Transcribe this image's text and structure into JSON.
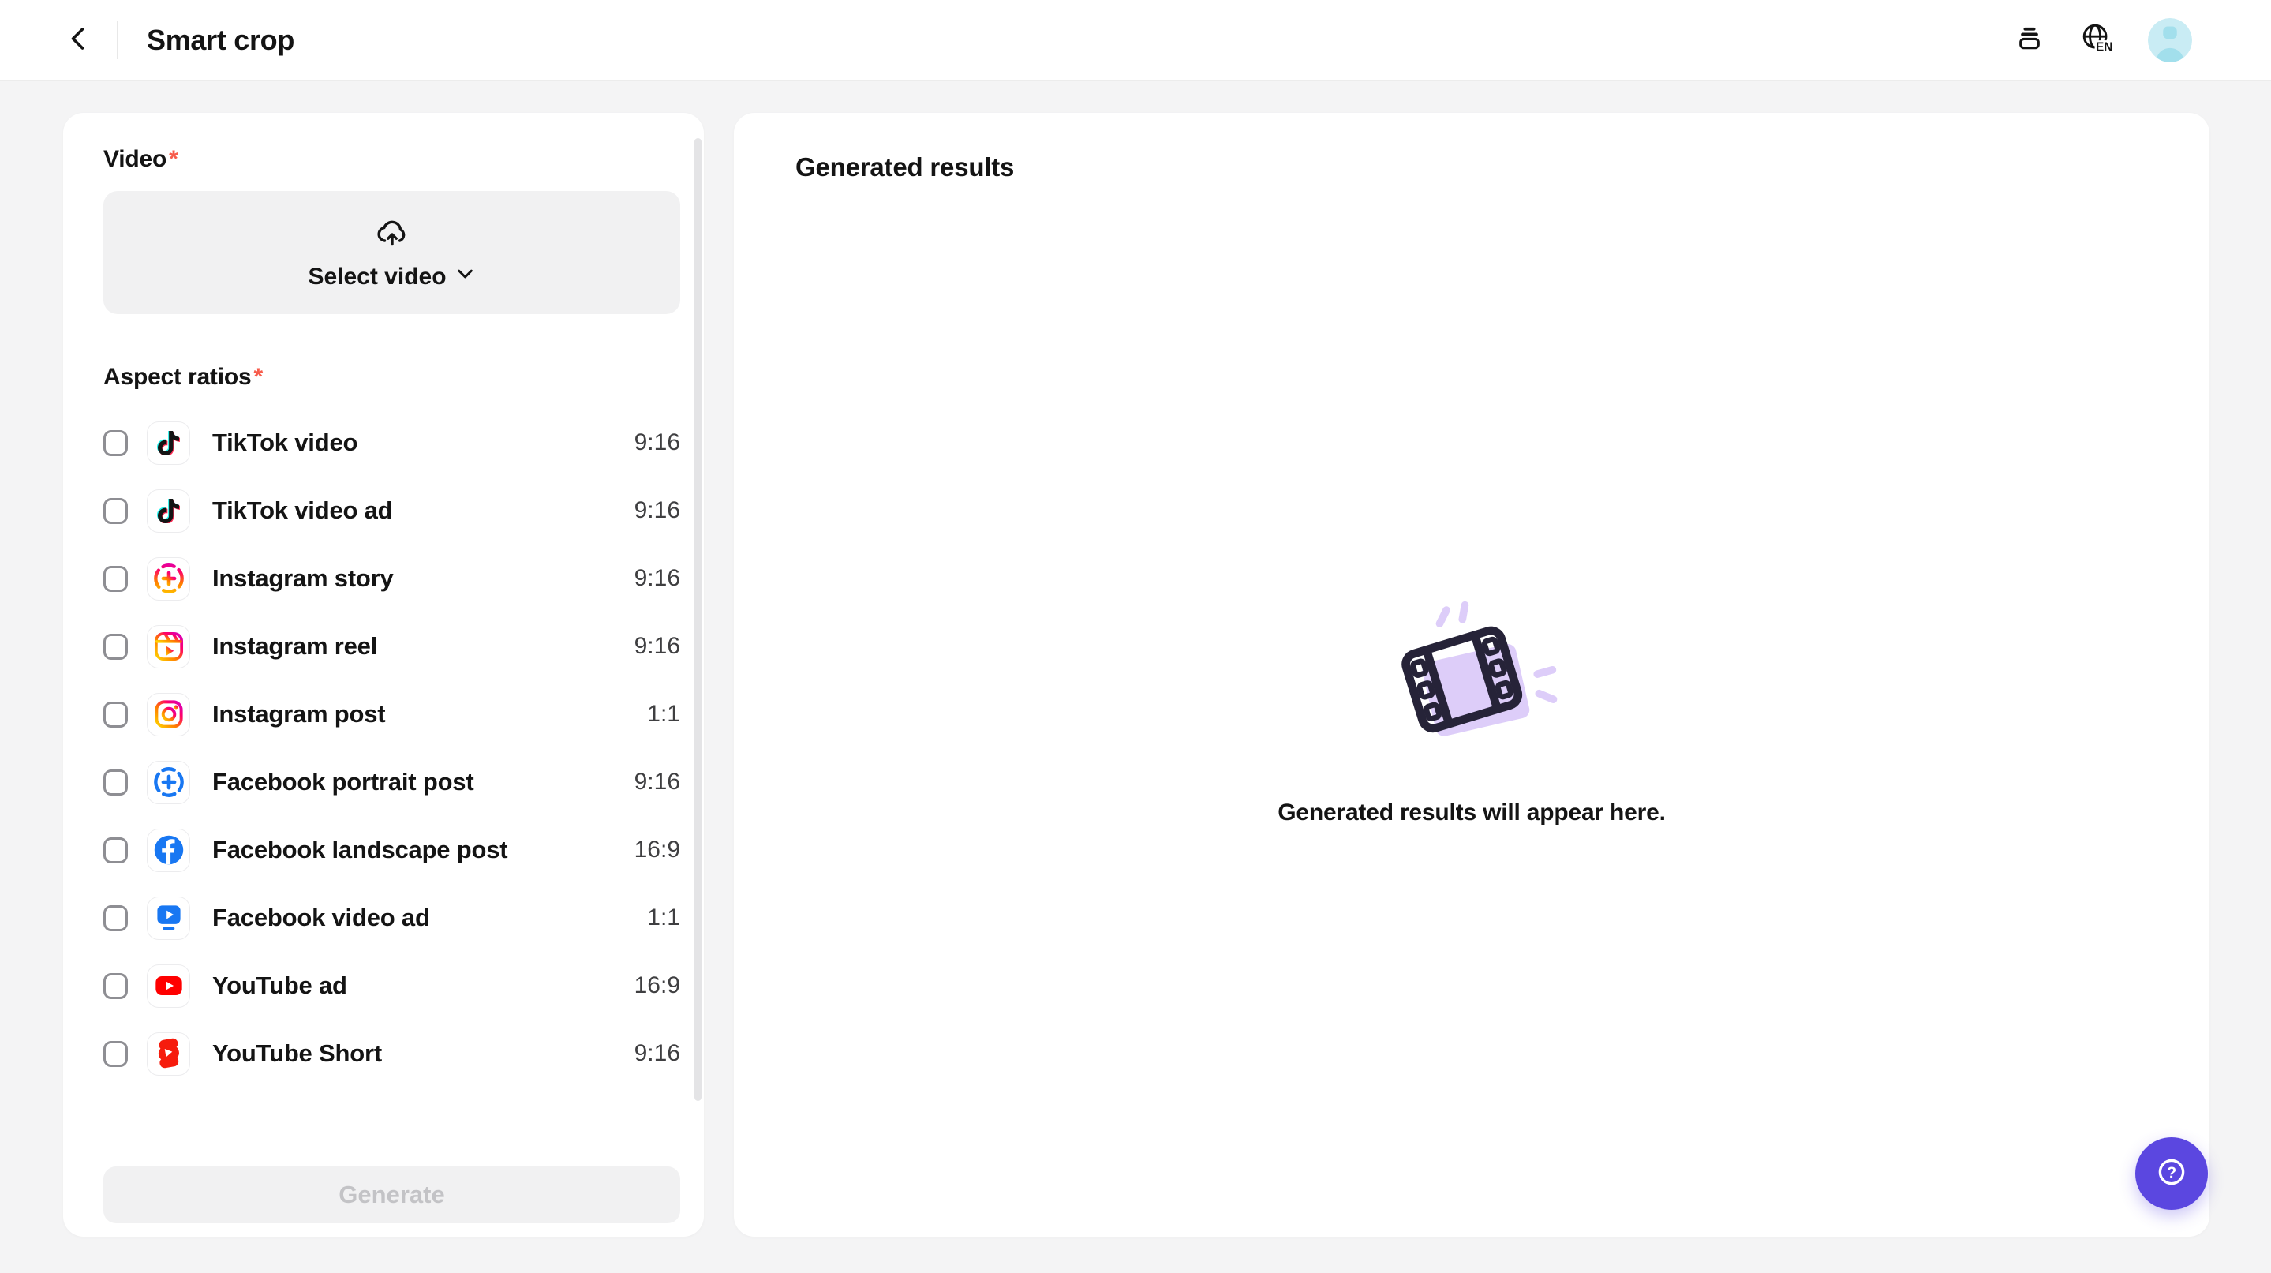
{
  "header": {
    "title": "Smart crop",
    "language_label": "EN"
  },
  "left_panel": {
    "video_section": {
      "label": "Video",
      "required": "*"
    },
    "upload": {
      "label": "Select video"
    },
    "aspect_section": {
      "label": "Aspect ratios",
      "required": "*"
    },
    "options": [
      {
        "label": "TikTok video",
        "ratio": "9:16",
        "icon": "tiktok",
        "checked": false
      },
      {
        "label": "TikTok video ad",
        "ratio": "9:16",
        "icon": "tiktok",
        "checked": false
      },
      {
        "label": "Instagram story",
        "ratio": "9:16",
        "icon": "instagram-story",
        "checked": false
      },
      {
        "label": "Instagram reel",
        "ratio": "9:16",
        "icon": "instagram-reel",
        "checked": false
      },
      {
        "label": "Instagram post",
        "ratio": "1:1",
        "icon": "instagram-post",
        "checked": false
      },
      {
        "label": "Facebook portrait post",
        "ratio": "9:16",
        "icon": "facebook-story",
        "checked": false
      },
      {
        "label": "Facebook landscape post",
        "ratio": "16:9",
        "icon": "facebook",
        "checked": false
      },
      {
        "label": "Facebook video ad",
        "ratio": "1:1",
        "icon": "facebook-video",
        "checked": false
      },
      {
        "label": "YouTube ad",
        "ratio": "16:9",
        "icon": "youtube",
        "checked": false
      },
      {
        "label": "YouTube Short",
        "ratio": "9:16",
        "icon": "youtube-shorts",
        "checked": false
      }
    ],
    "generate": {
      "label": "Generate",
      "enabled": false
    }
  },
  "right_panel": {
    "title": "Generated results",
    "empty_message": "Generated results will appear here."
  },
  "colors": {
    "accent_purple": "#5B47E0",
    "facebook_blue": "#1877F2",
    "youtube_red": "#FF0000",
    "shorts_red": "#F61C0D",
    "tiktok_cyan": "#25F4EE",
    "tiktok_pink": "#FE2C55",
    "required_red": "#F75C4C",
    "illustration_lavender": "#DDCDF9"
  }
}
